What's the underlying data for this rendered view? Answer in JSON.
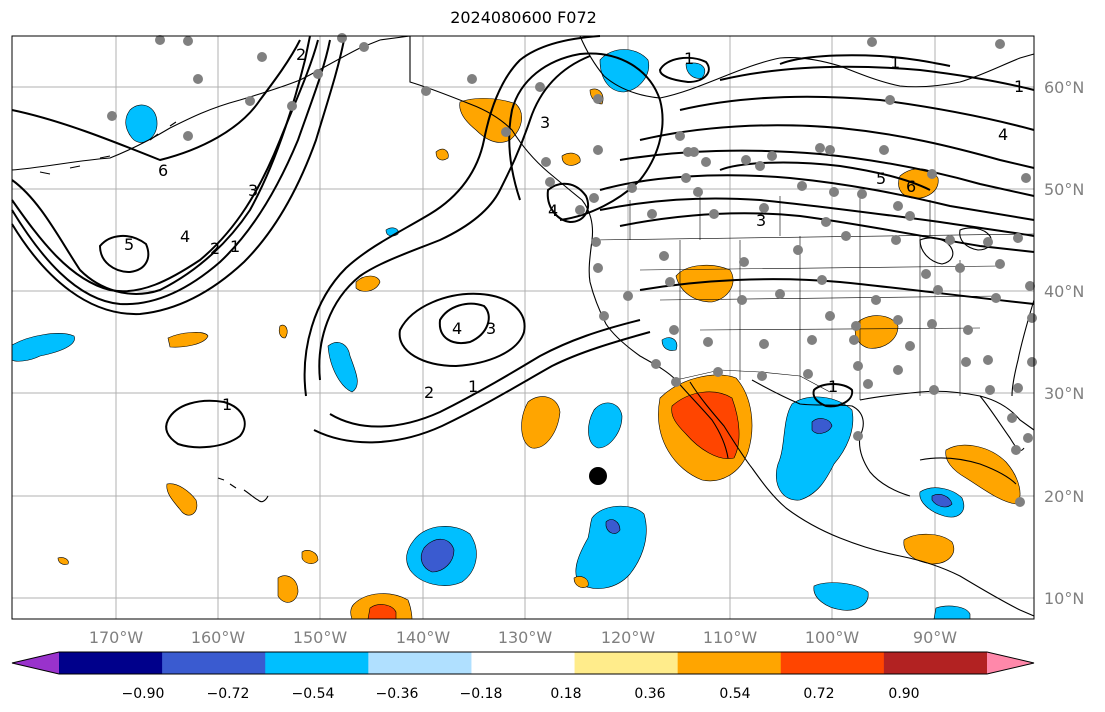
{
  "title": "2024080600 F072",
  "map": {
    "lon_labels": [
      "170°W",
      "160°W",
      "150°W",
      "140°W",
      "130°W",
      "120°W",
      "110°W",
      "100°W",
      "90°W"
    ],
    "lat_labels": [
      "60°N",
      "50°N",
      "40°N",
      "30°N",
      "20°N",
      "10°N"
    ],
    "contour_labels": [
      "1",
      "1",
      "1",
      "2",
      "3",
      "4",
      "5",
      "6",
      "4",
      "3",
      "2",
      "1",
      "4",
      "3",
      "2",
      "1",
      "5",
      "6",
      "4",
      "3",
      "1",
      "1"
    ]
  },
  "colorbar": {
    "ticks": [
      "−0.90",
      "−0.72",
      "−0.54",
      "−0.36",
      "−0.18",
      "0.18",
      "0.36",
      "0.54",
      "0.72",
      "0.90"
    ],
    "colors": [
      "#9932cc",
      "#00008b",
      "#3a5bd0",
      "#00bfff",
      "#b0e0ff",
      "#ffffff",
      "#ffec8b",
      "#ffa500",
      "#ff4500",
      "#b22222",
      "#ff88aa"
    ]
  }
}
